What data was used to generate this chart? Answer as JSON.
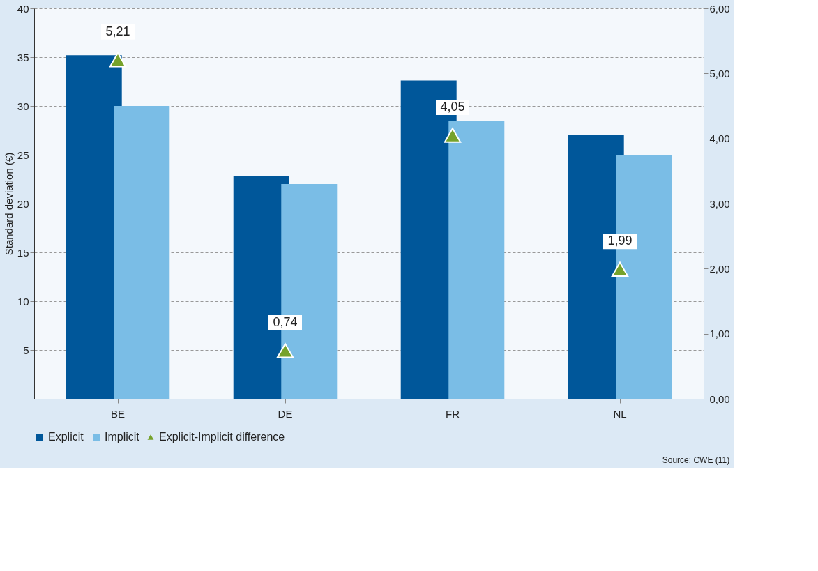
{
  "chart_data": {
    "type": "bar",
    "ylabel": "Standard deviation (€)",
    "categories": [
      "BE",
      "DE",
      "FR",
      "NL"
    ],
    "series": [
      {
        "name": "Explicit",
        "color": "#00579a",
        "values": [
          35.2,
          22.8,
          32.6,
          27
        ]
      },
      {
        "name": "Implicit",
        "color": "#7abde6",
        "values": [
          30,
          22,
          28.5,
          25
        ]
      },
      {
        "name": "Explicit-Implicit difference",
        "type": "scatter",
        "axis": "y2",
        "color": "#76a22b",
        "marker": "triangle",
        "values": [
          5.21,
          0.74,
          4.05,
          1.99
        ],
        "value_labels": [
          "5,21",
          "0,74",
          "4,05",
          "1,99"
        ]
      }
    ],
    "ylim": [
      0,
      40
    ],
    "yticks": [
      {
        "value": 0,
        "label": null
      },
      5,
      10,
      15,
      20,
      25,
      30,
      35,
      40
    ],
    "y2lim": [
      0,
      6
    ],
    "y2ticks": [
      {
        "value": 0,
        "label": "0,00"
      },
      {
        "value": 1,
        "label": "1,00"
      },
      {
        "value": 2,
        "label": "2,00"
      },
      {
        "value": 3,
        "label": "3,00"
      },
      {
        "value": 4,
        "label": "4,00"
      },
      {
        "value": 5,
        "label": "5,00"
      },
      {
        "value": 6,
        "label": "6,00"
      }
    ],
    "grid": "y",
    "legend": "bottom",
    "annotations": [
      "Source: CWE (11)"
    ]
  }
}
